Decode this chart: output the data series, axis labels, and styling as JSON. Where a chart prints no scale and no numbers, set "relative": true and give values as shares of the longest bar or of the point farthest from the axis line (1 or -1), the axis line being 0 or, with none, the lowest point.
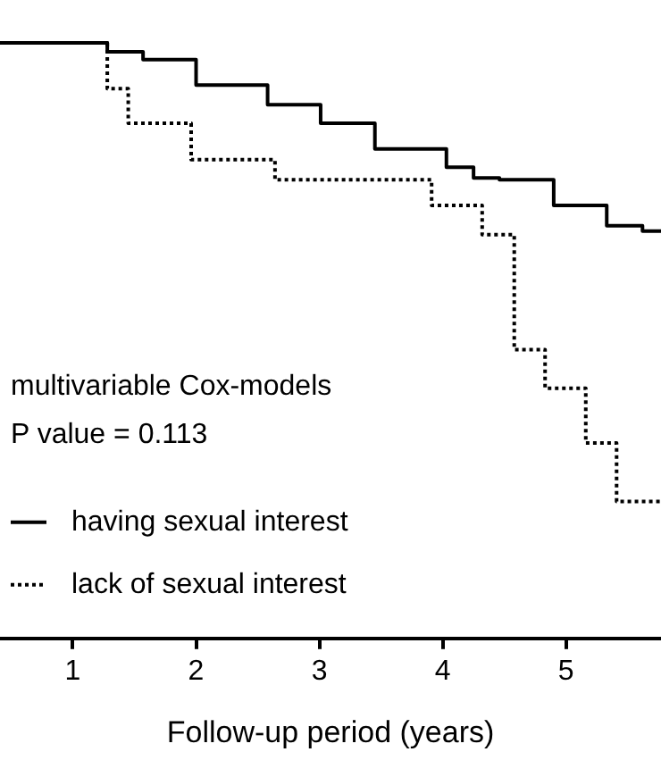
{
  "chart_data": {
    "type": "step",
    "xlabel": "Follow-up period (years)",
    "relative": true,
    "xlim": [
      0.41,
      5.77
    ],
    "xticks": [
      1,
      2,
      3,
      4,
      5
    ],
    "legend": "bottom left",
    "annotations": [
      "multivariable Cox-models",
      "P value = 0.113"
    ],
    "series": [
      {
        "name": "having sexual interest",
        "color": "#000000",
        "line_style": "solid",
        "x": [
          0.41,
          1.28,
          1.57,
          2.0,
          2.58,
          3.01,
          3.45,
          4.03,
          4.25,
          4.46,
          4.9,
          5.33,
          5.62,
          5.77
        ],
        "values": [
          1.0,
          0.985,
          0.972,
          0.929,
          0.896,
          0.865,
          0.822,
          0.791,
          0.773,
          0.77,
          0.727,
          0.693,
          0.684,
          0.684
        ]
      },
      {
        "name": "lack of sexual interest",
        "color": "#000000",
        "line_style": "dotted",
        "x": [
          0.41,
          1.28,
          1.45,
          1.96,
          2.64,
          3.91,
          4.32,
          4.58,
          4.83,
          5.16,
          5.41,
          5.77
        ],
        "values": [
          1.0,
          0.923,
          0.865,
          0.804,
          0.77,
          0.727,
          0.678,
          0.485,
          0.42,
          0.328,
          0.23,
          0.23
        ]
      }
    ]
  }
}
